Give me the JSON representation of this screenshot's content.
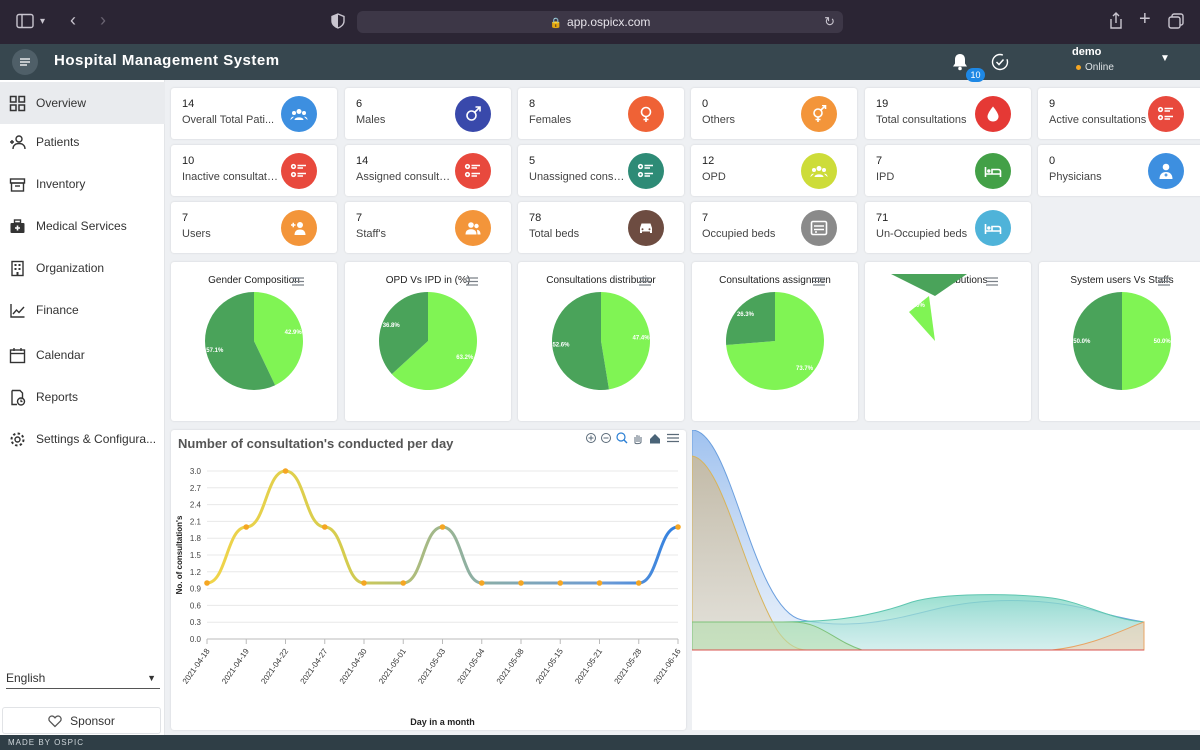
{
  "browser": {
    "url": "app.ospicx.com"
  },
  "header": {
    "title": "Hospital Management System",
    "notification_count": "10",
    "user_name": "demo",
    "user_status": "Online"
  },
  "sidebar": {
    "items": [
      {
        "label": "Overview",
        "icon": "grid-icon"
      },
      {
        "label": "Patients",
        "icon": "patients-icon"
      },
      {
        "label": "Inventory",
        "icon": "inventory-icon"
      },
      {
        "label": "Medical Services",
        "icon": "medical-services-icon"
      },
      {
        "label": "Organization",
        "icon": "organization-icon"
      },
      {
        "label": "Finance",
        "icon": "finance-icon"
      },
      {
        "label": "Calendar",
        "icon": "calendar-icon"
      },
      {
        "label": "Reports",
        "icon": "reports-icon"
      },
      {
        "label": "Settings & Configura...",
        "icon": "settings-icon"
      }
    ],
    "language": "English",
    "sponsor_label": "Sponsor"
  },
  "footer": {
    "text": "MADE BY OSPIC"
  },
  "stats": [
    {
      "value": "14",
      "label": "Overall Total Pati...",
      "color": "#3d8fe0",
      "icon": "group-icon"
    },
    {
      "value": "6",
      "label": "Males",
      "color": "#3949ab",
      "icon": "male-icon"
    },
    {
      "value": "8",
      "label": "Females",
      "color": "#ef6236",
      "icon": "female-icon"
    },
    {
      "value": "0",
      "label": "Others",
      "color": "#f3953a",
      "icon": "gender-other-icon"
    },
    {
      "value": "19",
      "label": "Total consultations",
      "color": "#e53935",
      "icon": "drop-icon"
    },
    {
      "value": "9",
      "label": "Active consultations",
      "color": "#e8493d",
      "icon": "list-icon"
    },
    {
      "value": "10",
      "label": "Inactive consultatio...",
      "color": "#e8493d",
      "icon": "list-icon"
    },
    {
      "value": "14",
      "label": "Assigned consulta...",
      "color": "#e8493d",
      "icon": "list-icon"
    },
    {
      "value": "5",
      "label": "Unassigned consu...",
      "color": "#2e8b76",
      "icon": "list-icon"
    },
    {
      "value": "12",
      "label": "OPD",
      "color": "#cddc39",
      "icon": "group-icon"
    },
    {
      "value": "7",
      "label": "IPD",
      "color": "#43a047",
      "icon": "bed-icon"
    },
    {
      "value": "0",
      "label": "Physicians",
      "color": "#3d8fe0",
      "icon": "physician-icon"
    },
    {
      "value": "7",
      "label": "Users",
      "color": "#f3953a",
      "icon": "user-add-icon"
    },
    {
      "value": "7",
      "label": "Staff's",
      "color": "#f3953a",
      "icon": "staff-icon"
    },
    {
      "value": "78",
      "label": "Total beds",
      "color": "#6d4c41",
      "icon": "car-icon"
    },
    {
      "value": "7",
      "label": "Occupied beds",
      "color": "#8a8a8a",
      "icon": "occupied-bed-icon"
    },
    {
      "value": "71",
      "label": "Un-Occupied beds",
      "color": "#4fb3d9",
      "icon": "bed-icon"
    }
  ],
  "pies": [
    {
      "title": "Gender Composition",
      "slices": [
        {
          "value": 42.9,
          "label": "42.9%"
        },
        {
          "value": 57.1,
          "label": "57.1%"
        }
      ]
    },
    {
      "title": "OPD Vs IPD in (%)",
      "slices": [
        {
          "value": 63.2,
          "label": "63.2%"
        },
        {
          "value": 36.8,
          "label": "36.8%"
        }
      ]
    },
    {
      "title": "Consultations distributior",
      "slices": [
        {
          "value": 47.4,
          "label": "47.4%"
        },
        {
          "value": 52.6,
          "label": "52.6%"
        }
      ]
    },
    {
      "title": "Consultations assignmen",
      "slices": [
        {
          "value": 73.7,
          "label": "73.7%"
        },
        {
          "value": 26.3,
          "label": "26.3%"
        }
      ]
    },
    {
      "title": "Beds distributions",
      "slices": [
        {
          "value": 9.0,
          "label": "9.0%"
        },
        {
          "value": 91.0,
          "label": ""
        }
      ]
    },
    {
      "title": "System users Vs Staffs",
      "slices": [
        {
          "value": 50.0,
          "label": "50.0%"
        },
        {
          "value": 50.0,
          "label": "50.0%"
        }
      ]
    }
  ],
  "colors": {
    "pie_light": "#80f454",
    "pie_dark": "#4aa35a"
  },
  "chart_data": {
    "type": "line",
    "title": "Number of consultation's conducted per day",
    "xlabel": "Day in a month",
    "ylabel": "No. of consultation's",
    "ylim": [
      0,
      3.0
    ],
    "yticks": [
      "0.0",
      "0.3",
      "0.6",
      "0.9",
      "1.2",
      "1.5",
      "1.8",
      "2.1",
      "2.4",
      "2.7",
      "3.0"
    ],
    "x": [
      "2021-04-18",
      "2021-04-19",
      "2021-04-22",
      "2021-04-27",
      "2021-04-30",
      "2021-05-01",
      "2021-05-03",
      "2021-05-04",
      "2021-05-08",
      "2021-05-15",
      "2021-05-21",
      "2021-05-28",
      "2021-06-16"
    ],
    "values": [
      1,
      2,
      3,
      2,
      1,
      1,
      2,
      1,
      1,
      1,
      1,
      1,
      2
    ]
  }
}
